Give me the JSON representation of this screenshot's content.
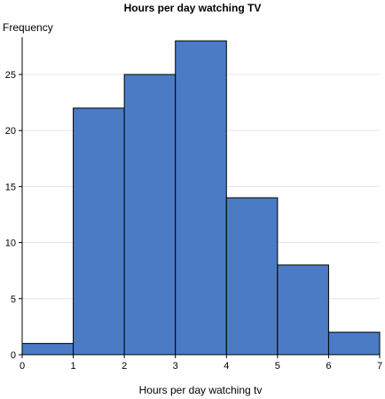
{
  "chart_data": {
    "type": "bar",
    "title": "Hours per day watching TV",
    "xlabel": "Hours per day watching tv",
    "ylabel": "Frequency",
    "bins": [
      {
        "from": 0,
        "to": 1,
        "value": 1
      },
      {
        "from": 1,
        "to": 2,
        "value": 22
      },
      {
        "from": 2,
        "to": 3,
        "value": 25
      },
      {
        "from": 3,
        "to": 4,
        "value": 28
      },
      {
        "from": 4,
        "to": 5,
        "value": 14
      },
      {
        "from": 5,
        "to": 6,
        "value": 8
      },
      {
        "from": 6,
        "to": 7,
        "value": 2
      }
    ],
    "xlim": [
      0,
      7
    ],
    "ylim": [
      0,
      28
    ],
    "xticks": [
      "0",
      "1",
      "2",
      "3",
      "4",
      "5",
      "6",
      "7"
    ],
    "yticks": [
      "0",
      "5",
      "10",
      "15",
      "20",
      "25"
    ],
    "grid": true,
    "bar_color": "#4a7bc4",
    "bar_edge_color": "#000000",
    "grid_color": "#e6e6e6"
  }
}
